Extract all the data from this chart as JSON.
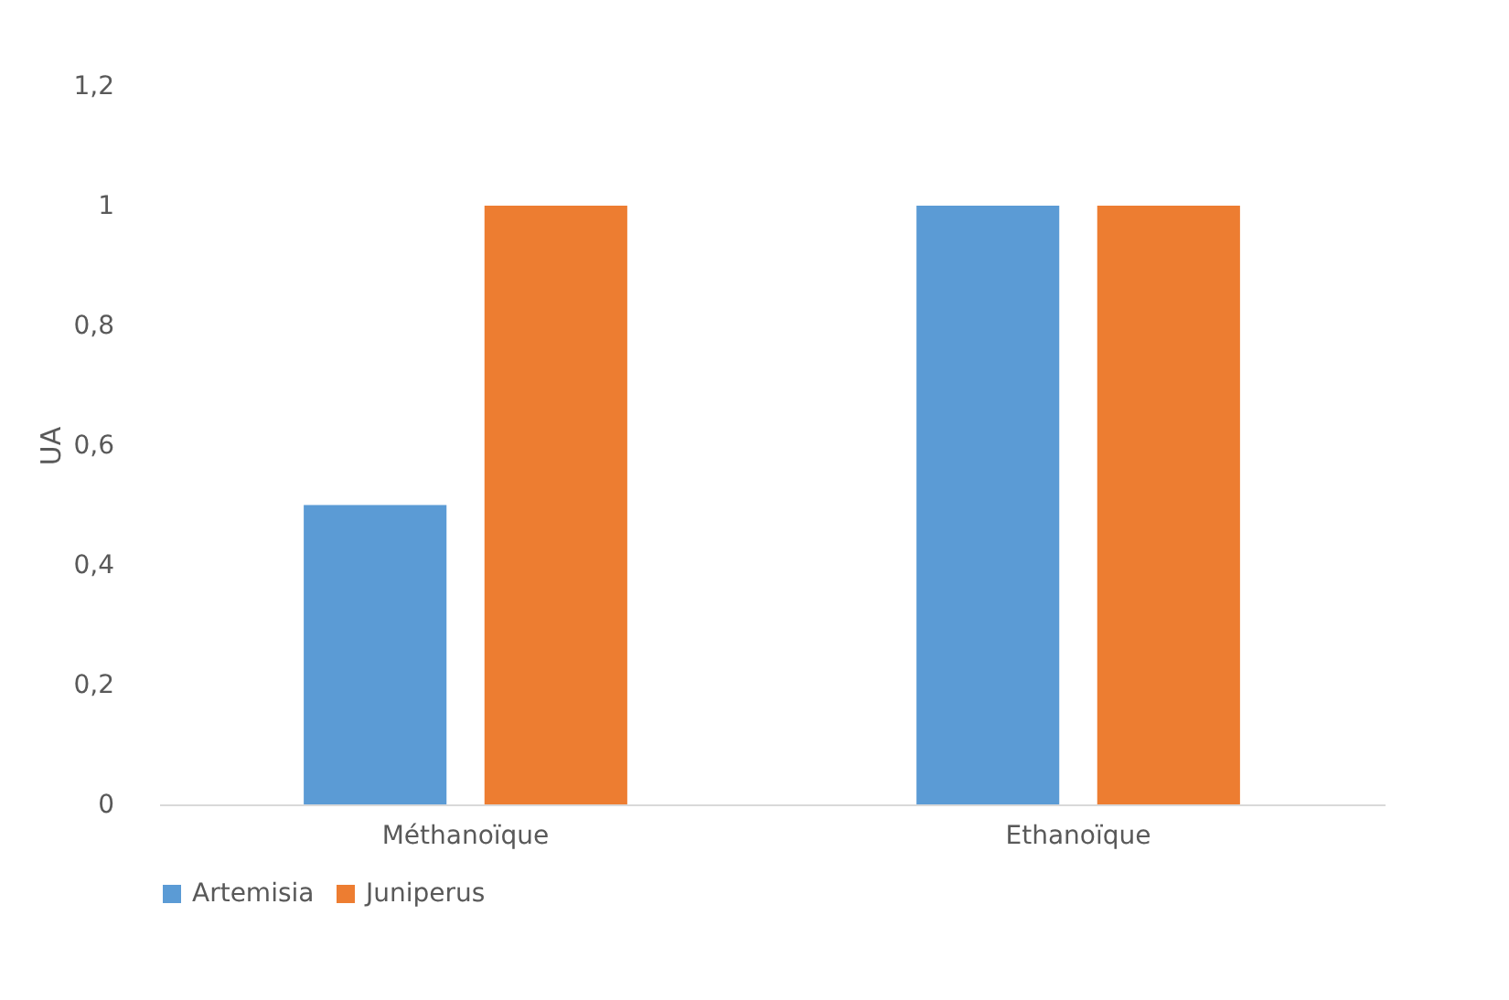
{
  "chart_data": {
    "type": "bar",
    "ylabel": "UA",
    "categories": [
      "Méthanoïque",
      "Ethanoïque"
    ],
    "series": [
      {
        "name": "Artemisia",
        "color": "#5b9bd5",
        "values": [
          0.5,
          1
        ]
      },
      {
        "name": "Juniperus",
        "color": "#ed7d31",
        "values": [
          1,
          1
        ]
      }
    ],
    "ylim": [
      0,
      1.2
    ],
    "yticks": [
      0,
      {
        "value": 0.2,
        "label": "0,2"
      },
      {
        "value": 0.4,
        "label": "0,4"
      },
      {
        "value": 0.6,
        "label": "0,6"
      },
      {
        "value": 0.8,
        "label": "0,8"
      },
      1,
      {
        "value": 1.2,
        "label": "1,2"
      }
    ],
    "grid": false,
    "legend": "bottom"
  }
}
